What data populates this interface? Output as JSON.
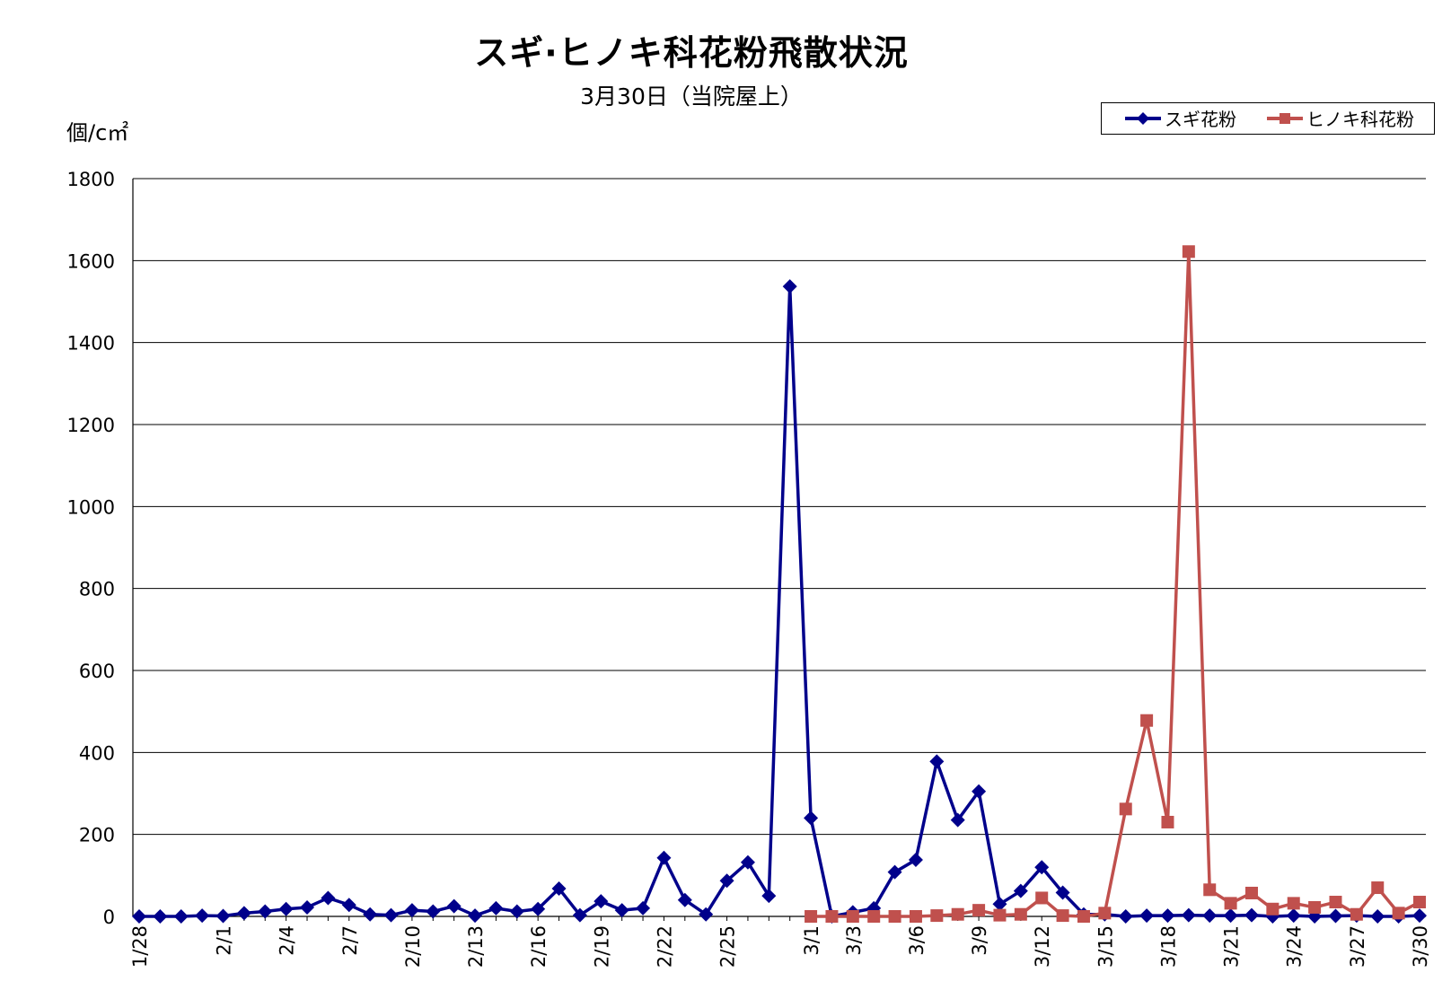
{
  "chart_data": {
    "type": "line",
    "title": "スギ·ヒノキ科花粉飛散状況",
    "subtitle": "3月30日（当院屋上）",
    "ylabel": "個/c㎡",
    "ylim": [
      0,
      1800
    ],
    "yticks": [
      0,
      200,
      400,
      600,
      800,
      1000,
      1200,
      1400,
      1600,
      1800
    ],
    "grid": true,
    "legend": "top-right",
    "x": [
      "1/28",
      "1/29",
      "1/30",
      "1/31",
      "2/1",
      "2/2",
      "2/3",
      "2/4",
      "2/5",
      "2/6",
      "2/7",
      "2/8",
      "2/9",
      "2/10",
      "2/11",
      "2/12",
      "2/13",
      "2/14",
      "2/15",
      "2/16",
      "2/17",
      "2/18",
      "2/19",
      "2/20",
      "2/21",
      "2/22",
      "2/23",
      "2/24",
      "2/25",
      "2/26",
      "2/27",
      "2/28",
      "3/1",
      "3/2",
      "3/3",
      "3/4",
      "3/5",
      "3/6",
      "3/7",
      "3/8",
      "3/9",
      "3/10",
      "3/11",
      "3/12",
      "3/13",
      "3/14",
      "3/15",
      "3/16",
      "3/17",
      "3/18",
      "3/19",
      "3/20",
      "3/21",
      "3/22",
      "3/23",
      "3/24",
      "3/25",
      "3/26",
      "3/27",
      "3/28",
      "3/29",
      "3/30"
    ],
    "xtick_labels": [
      "1/28",
      "2/1",
      "2/4",
      "2/7",
      "2/10",
      "2/13",
      "2/16",
      "2/19",
      "2/22",
      "2/25",
      "3/1",
      "3/3",
      "3/6",
      "3/9",
      "3/12",
      "3/15",
      "3/18",
      "3/21",
      "3/24",
      "3/27",
      "3/30"
    ],
    "series": [
      {
        "name": "スギ花粉",
        "color": "#00008B",
        "marker": "diamond",
        "values": [
          0,
          0,
          0,
          2,
          1,
          8,
          12,
          18,
          22,
          45,
          28,
          5,
          3,
          15,
          12,
          25,
          2,
          20,
          12,
          18,
          68,
          3,
          37,
          15,
          20,
          143,
          40,
          5,
          87,
          132,
          50,
          1537,
          240,
          0,
          10,
          20,
          108,
          138,
          378,
          235,
          305,
          30,
          62,
          120,
          58,
          5,
          5,
          0,
          2,
          2,
          3,
          2,
          2,
          3,
          0,
          2,
          0,
          1,
          2,
          0,
          0,
          2
        ]
      },
      {
        "name": "ヒノキ科花粉",
        "color": "#C0504D",
        "marker": "square",
        "values": [
          null,
          null,
          null,
          null,
          null,
          null,
          null,
          null,
          null,
          null,
          null,
          null,
          null,
          null,
          null,
          null,
          null,
          null,
          null,
          null,
          null,
          null,
          null,
          null,
          null,
          null,
          null,
          null,
          null,
          null,
          null,
          null,
          0,
          0,
          0,
          0,
          0,
          0,
          2,
          5,
          15,
          3,
          5,
          45,
          2,
          0,
          8,
          262,
          478,
          230,
          1622,
          65,
          32,
          57,
          18,
          32,
          22,
          35,
          5,
          70,
          8,
          35
        ]
      }
    ]
  }
}
